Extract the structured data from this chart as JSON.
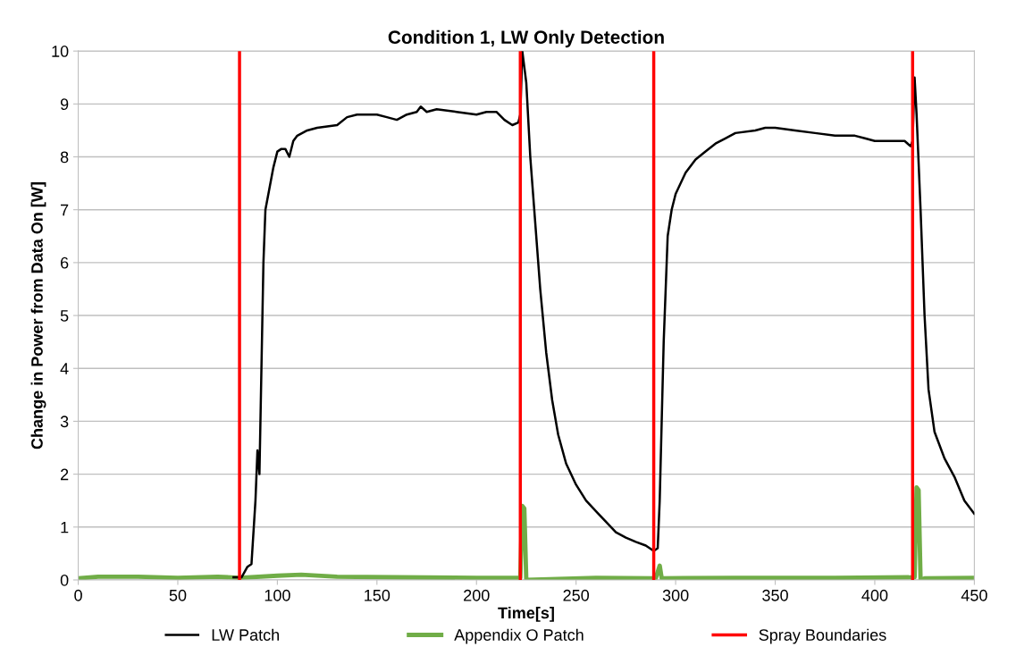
{
  "chart_data": {
    "type": "line",
    "title": "Condition 1, LW Only Detection",
    "xlabel": "Time[s]",
    "ylabel": "Change in Power from Data On [W]",
    "xlim": [
      0,
      450
    ],
    "xticks": [
      0,
      50,
      100,
      150,
      200,
      250,
      300,
      350,
      400,
      450
    ],
    "ylim": [
      0,
      10
    ],
    "yticks": [
      0,
      1,
      2,
      3,
      4,
      5,
      6,
      7,
      8,
      9,
      10
    ],
    "grid": "y",
    "legend": "bottom",
    "marker": "none",
    "line_style": "solid",
    "series": [
      {
        "name": "LW Patch",
        "color": "#000000",
        "x": [
          78,
          82,
          85,
          87,
          89,
          90,
          91,
          92,
          93,
          94,
          96,
          98,
          100,
          102,
          104,
          106,
          108,
          110,
          115,
          120,
          130,
          135,
          140,
          150,
          155,
          160,
          165,
          170,
          172,
          175,
          180,
          190,
          200,
          205,
          210,
          214,
          218,
          221,
          222,
          223,
          224,
          225,
          227,
          229,
          232,
          235,
          238,
          241,
          245,
          250,
          255,
          260,
          265,
          270,
          275,
          280,
          285,
          289,
          291,
          292,
          293,
          294,
          295,
          296,
          298,
          300,
          305,
          310,
          315,
          320,
          325,
          330,
          340,
          345,
          350,
          360,
          370,
          380,
          390,
          395,
          400,
          410,
          415,
          418,
          419,
          420,
          421,
          423,
          425,
          427,
          430,
          435,
          440,
          445,
          450
        ],
        "values": [
          0.05,
          0.05,
          0.25,
          0.3,
          1.5,
          2.45,
          2.0,
          4.0,
          6.0,
          7.0,
          7.4,
          7.8,
          8.1,
          8.15,
          8.15,
          8.0,
          8.3,
          8.4,
          8.5,
          8.55,
          8.6,
          8.75,
          8.8,
          8.8,
          8.75,
          8.7,
          8.8,
          8.85,
          8.95,
          8.85,
          8.9,
          8.85,
          8.8,
          8.85,
          8.85,
          8.7,
          8.6,
          8.65,
          8.8,
          10.0,
          9.7,
          9.4,
          8.0,
          7.0,
          5.5,
          4.3,
          3.4,
          2.75,
          2.2,
          1.8,
          1.5,
          1.3,
          1.1,
          0.9,
          0.8,
          0.72,
          0.65,
          0.55,
          0.6,
          1.5,
          3.0,
          4.5,
          5.5,
          6.5,
          7.0,
          7.3,
          7.7,
          7.95,
          8.1,
          8.25,
          8.35,
          8.45,
          8.5,
          8.55,
          8.55,
          8.5,
          8.45,
          8.4,
          8.4,
          8.35,
          8.3,
          8.3,
          8.3,
          8.2,
          8.3,
          9.5,
          8.8,
          7.0,
          5.0,
          3.6,
          2.8,
          2.3,
          1.95,
          1.5,
          1.25
        ]
      },
      {
        "name": "Appendix O Patch",
        "color": "#70ad47",
        "x": [
          0,
          10,
          30,
          50,
          70,
          81,
          100,
          112,
          130,
          160,
          200,
          222,
          223,
          224,
          225,
          260,
          290,
          292,
          293,
          330,
          380,
          420,
          421,
          422,
          423,
          425,
          450
        ],
        "values": [
          0.03,
          0.06,
          0.06,
          0.04,
          0.06,
          0.04,
          0.08,
          0.1,
          0.06,
          0.05,
          0.04,
          0.04,
          1.4,
          1.35,
          0.0,
          0.04,
          0.03,
          0.27,
          0.03,
          0.04,
          0.04,
          0.05,
          1.75,
          1.7,
          0.0,
          0.03,
          0.04
        ]
      }
    ],
    "ref_lines": [
      {
        "axis": "x",
        "value": 81,
        "label": "Spray Boundaries",
        "color": "#ff0000"
      },
      {
        "axis": "x",
        "value": 222,
        "color": "#ff0000"
      },
      {
        "axis": "x",
        "value": 289,
        "color": "#ff0000"
      },
      {
        "axis": "x",
        "value": 419,
        "color": "#ff0000"
      }
    ]
  }
}
